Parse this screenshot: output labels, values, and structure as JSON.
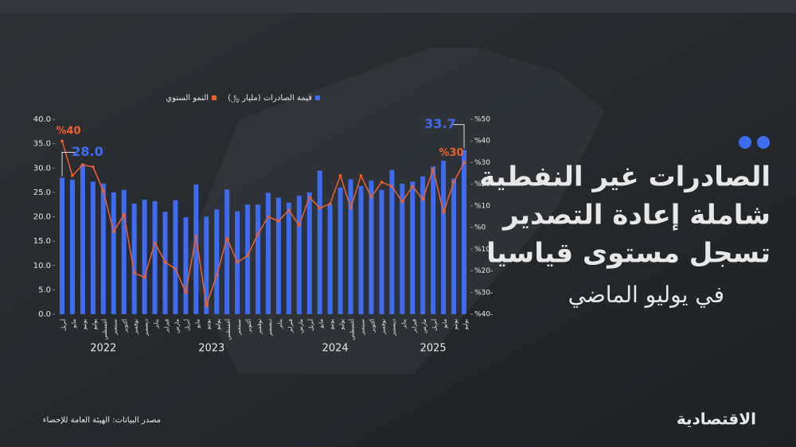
{
  "chart_data": {
    "type": "bar-line",
    "title": [
      "الصادرات غير النفطية",
      "شاملة إعادة التصدير",
      "تسجل مستوى قياسيا"
    ],
    "subtitle": "في يوليو الماضي",
    "categories": [
      "أبريل",
      "مايو",
      "يونيو",
      "يوليو",
      "أغسطس",
      "سبتمبر",
      "أكتوبر",
      "نوفمبر",
      "ديسمبر",
      "يناير",
      "فبراير",
      "مارس",
      "أبريل",
      "مايو",
      "يونيو",
      "يوليو",
      "أغسطس",
      "سبتمبر",
      "أكتوبر",
      "نوفمبر",
      "ديسمبر",
      "يناير",
      "فبراير",
      "مارس",
      "أبريل",
      "مايو",
      "يونيو",
      "يوليو",
      "أغسطس",
      "سبتمبر",
      "أكتوبر",
      "نوفمبر",
      "ديسمبر",
      "يناير",
      "فبراير",
      "مارس",
      "أبريل",
      "مايو",
      "يونيو",
      "يوليو"
    ],
    "years": [
      "2022",
      "2023",
      "2024",
      "2025"
    ],
    "series": [
      {
        "name": "قيمة الصادرات (مليار ﷼)",
        "color": "#3d6cf0",
        "kind": "bar",
        "values": [
          28.0,
          27.6,
          30.8,
          27.2,
          26.8,
          25.0,
          25.5,
          22.7,
          23.5,
          23.2,
          21.0,
          23.4,
          19.9,
          26.6,
          20.0,
          21.5,
          25.6,
          21.1,
          22.5,
          22.5,
          24.9,
          23.9,
          22.9,
          24.3,
          25.0,
          29.5,
          22.5,
          26.0,
          27.7,
          26.3,
          27.4,
          25.5,
          29.6,
          26.8,
          27.2,
          28.3,
          30.3,
          31.5,
          27.8,
          33.7
        ],
        "value_labels": [
          "28.0",
          null,
          null,
          null,
          null,
          null,
          null,
          null,
          null,
          null,
          null,
          null,
          null,
          null,
          null,
          null,
          null,
          null,
          null,
          null,
          null,
          null,
          null,
          null,
          null,
          null,
          null,
          null,
          null,
          null,
          null,
          null,
          null,
          null,
          null,
          null,
          null,
          null,
          null,
          "33.7"
        ]
      },
      {
        "name": "النمو السنوي",
        "color": "#f0602a",
        "kind": "line",
        "axis": "y2",
        "values": [
          40,
          24,
          29,
          28,
          17,
          -2,
          6,
          -21,
          -23,
          -7,
          -16,
          -19,
          -30,
          -4,
          -36,
          -22,
          -5,
          -16,
          -13,
          -3,
          5,
          3,
          8,
          1,
          14,
          9,
          11,
          24,
          9,
          24,
          14,
          21,
          19,
          12,
          19,
          13,
          27,
          7,
          21,
          30
        ],
        "value_labels": [
          "%40",
          null,
          null,
          null,
          null,
          null,
          null,
          null,
          null,
          null,
          null,
          null,
          null,
          null,
          null,
          null,
          null,
          null,
          null,
          null,
          null,
          null,
          null,
          null,
          null,
          null,
          null,
          null,
          null,
          null,
          null,
          null,
          null,
          null,
          null,
          null,
          null,
          null,
          null,
          "%30"
        ]
      }
    ],
    "ylim": [
      0,
      40
    ],
    "yticks": [
      {
        "value": 0,
        "label": "0.0"
      },
      {
        "value": 5,
        "label": "5.0"
      },
      {
        "value": 10,
        "label": "10.0"
      },
      {
        "value": 15,
        "label": "15.0"
      },
      {
        "value": 20,
        "label": "20.0"
      },
      {
        "value": 25,
        "label": "25.0"
      },
      {
        "value": 30,
        "label": "30.0"
      },
      {
        "value": 35,
        "label": "35.0"
      },
      {
        "value": 40,
        "label": "40.0"
      }
    ],
    "y2lim": [
      -40,
      50
    ],
    "y2ticks": [
      {
        "value": -40,
        "label": "%40-"
      },
      {
        "value": -30,
        "label": "%30-"
      },
      {
        "value": -20,
        "label": "%20-"
      },
      {
        "value": -10,
        "label": "%10-"
      },
      {
        "value": 0,
        "label": "%0"
      },
      {
        "value": 10,
        "label": "%10"
      },
      {
        "value": 20,
        "label": "%20"
      },
      {
        "value": 30,
        "label": "%30"
      },
      {
        "value": 40,
        "label": "%40"
      },
      {
        "value": 50,
        "label": "%50"
      }
    ]
  },
  "source": "مصدر البيانات: الهيئة العامة للإحصاء",
  "brand": "الاقتصادية"
}
